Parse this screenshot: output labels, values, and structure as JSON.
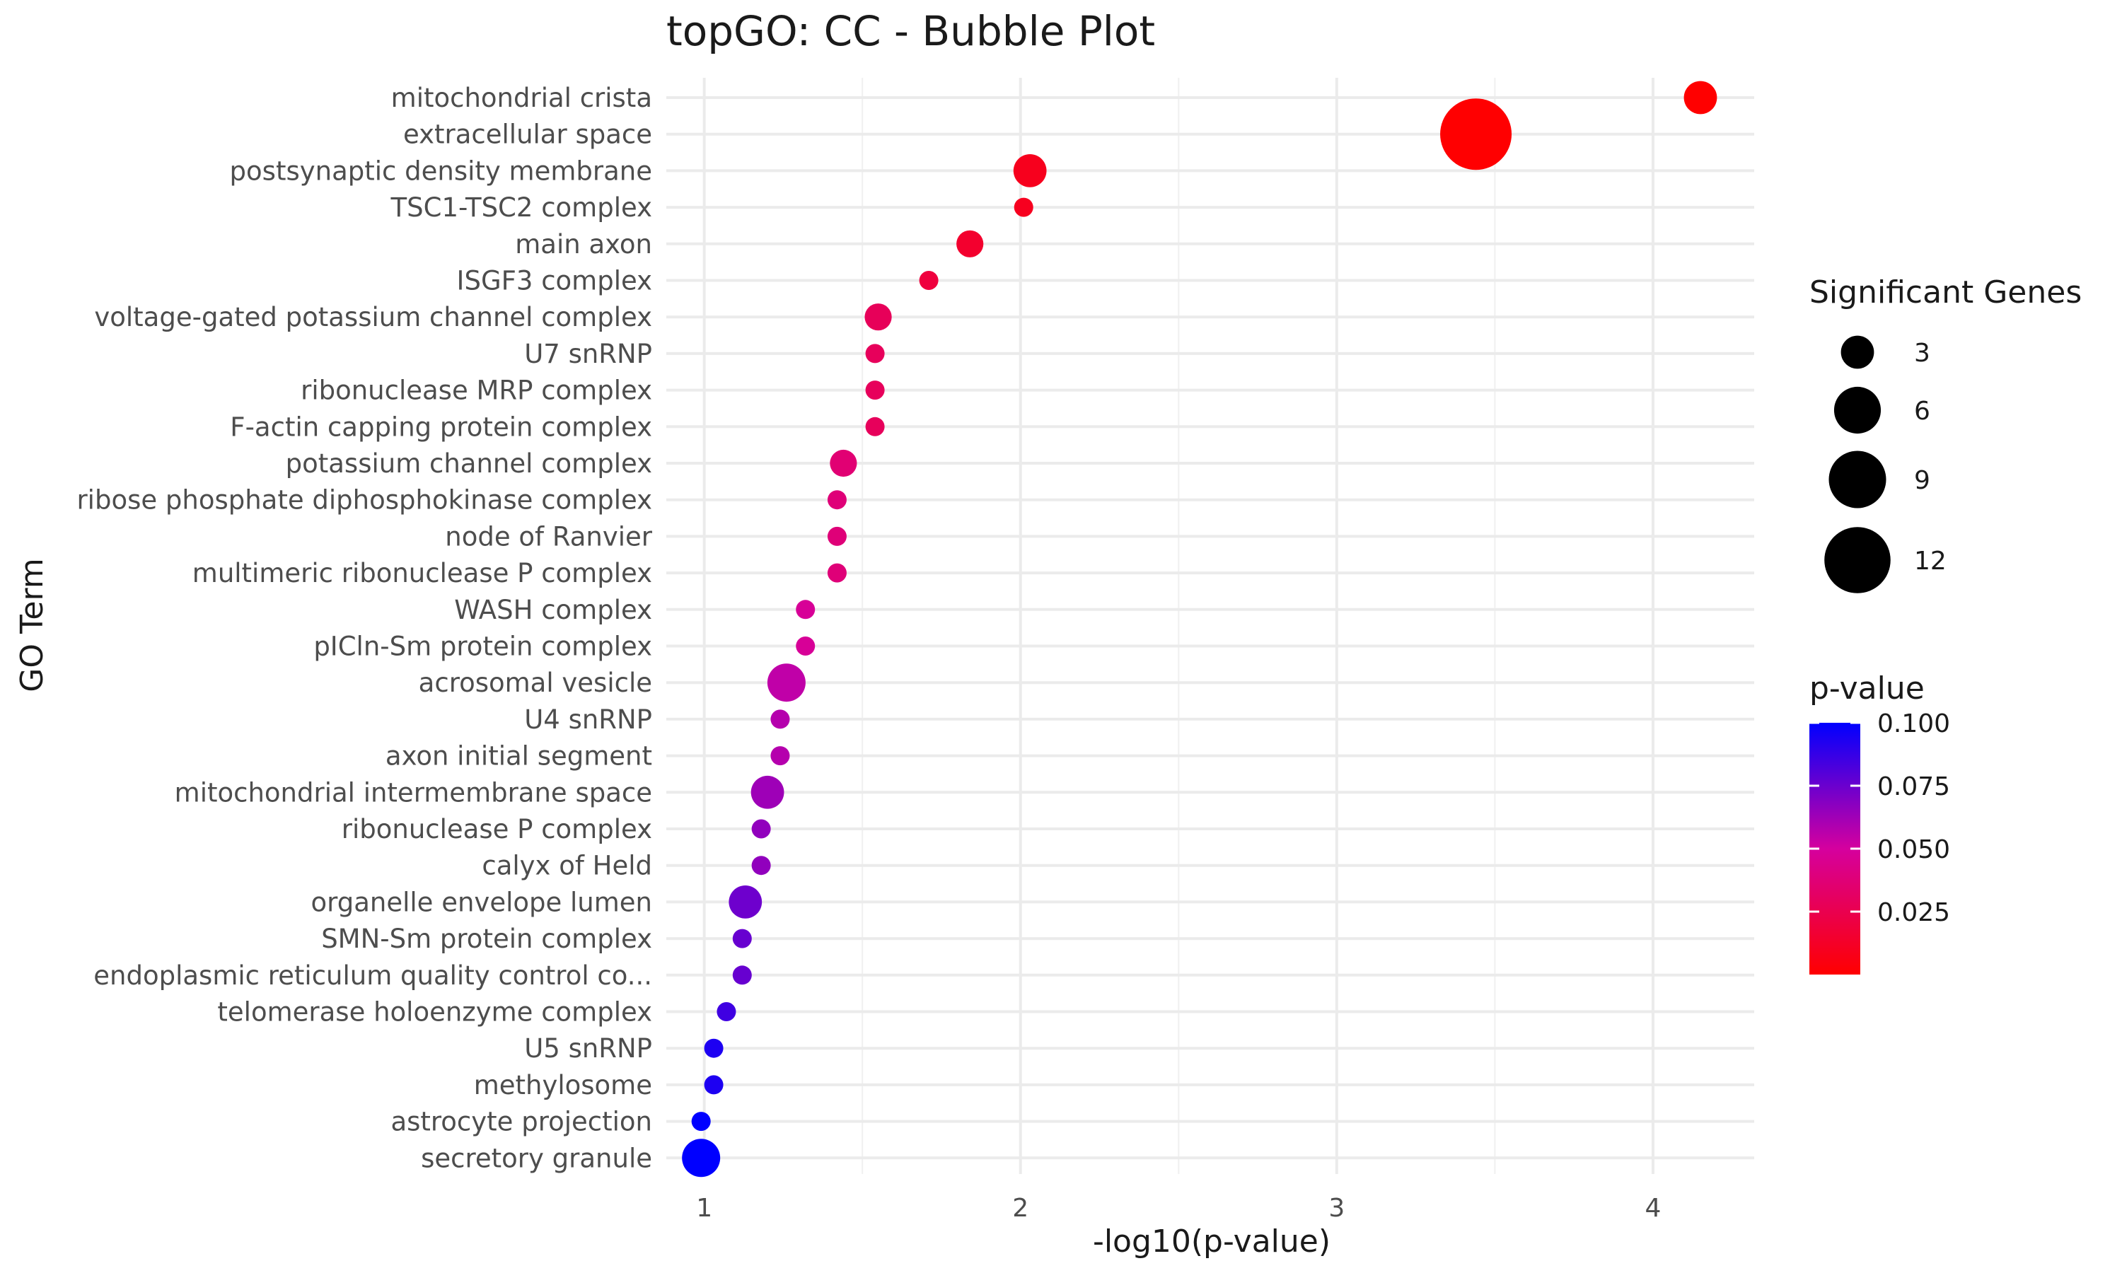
{
  "chart_data": {
    "type": "scatter",
    "title": "topGO: CC - Bubble Plot",
    "xlabel": "-log10(p-value)",
    "ylabel": "GO Term",
    "xlim": [
      0.88,
      4.32
    ],
    "x_ticks": [
      {
        "value": 1,
        "label": "1"
      },
      {
        "value": 2,
        "label": "2"
      },
      {
        "value": 3,
        "label": "3"
      },
      {
        "value": 4,
        "label": "4"
      }
    ],
    "grid": true,
    "points": [
      {
        "term": "mitochondrial crista",
        "x": 4.15,
        "genes": 3,
        "p": 7e-05
      },
      {
        "term": "extracellular space",
        "x": 3.44,
        "genes": 14,
        "p": 0.00036
      },
      {
        "term": "postsynaptic density membrane",
        "x": 2.03,
        "genes": 3,
        "p": 0.0093
      },
      {
        "term": "TSC1-TSC2 complex",
        "x": 2.01,
        "genes": 1,
        "p": 0.0098
      },
      {
        "term": "main axon",
        "x": 1.84,
        "genes": 2,
        "p": 0.0145
      },
      {
        "term": "ISGF3 complex",
        "x": 1.71,
        "genes": 1,
        "p": 0.0195
      },
      {
        "term": "voltage-gated potassium channel complex",
        "x": 1.55,
        "genes": 2,
        "p": 0.0282
      },
      {
        "term": "U7 snRNP",
        "x": 1.54,
        "genes": 1,
        "p": 0.0288
      },
      {
        "term": "ribonuclease MRP complex",
        "x": 1.54,
        "genes": 1,
        "p": 0.0288
      },
      {
        "term": "F-actin capping protein complex",
        "x": 1.54,
        "genes": 1,
        "p": 0.0288
      },
      {
        "term": "potassium channel complex",
        "x": 1.44,
        "genes": 2,
        "p": 0.0363
      },
      {
        "term": "ribose phosphate diphosphokinase complex",
        "x": 1.42,
        "genes": 1,
        "p": 0.038
      },
      {
        "term": "node of Ranvier",
        "x": 1.42,
        "genes": 1,
        "p": 0.038
      },
      {
        "term": "multimeric ribonuclease P complex",
        "x": 1.42,
        "genes": 1,
        "p": 0.038
      },
      {
        "term": "WASH complex",
        "x": 1.32,
        "genes": 1,
        "p": 0.0479
      },
      {
        "term": "pICln-Sm protein complex",
        "x": 1.32,
        "genes": 1,
        "p": 0.0479
      },
      {
        "term": "acrosomal vesicle",
        "x": 1.26,
        "genes": 4,
        "p": 0.055
      },
      {
        "term": "U4 snRNP",
        "x": 1.24,
        "genes": 1,
        "p": 0.0575
      },
      {
        "term": "axon initial segment",
        "x": 1.24,
        "genes": 1,
        "p": 0.0575
      },
      {
        "term": "mitochondrial intermembrane space",
        "x": 1.2,
        "genes": 3,
        "p": 0.063
      },
      {
        "term": "ribonuclease P complex",
        "x": 1.18,
        "genes": 1,
        "p": 0.066
      },
      {
        "term": "calyx of Held",
        "x": 1.18,
        "genes": 1,
        "p": 0.066
      },
      {
        "term": "organelle envelope lumen",
        "x": 1.13,
        "genes": 3,
        "p": 0.0741
      },
      {
        "term": "SMN-Sm protein complex",
        "x": 1.12,
        "genes": 1,
        "p": 0.0759
      },
      {
        "term": "endoplasmic reticulum quality control co...",
        "x": 1.12,
        "genes": 1,
        "p": 0.0759
      },
      {
        "term": "telomerase holoenzyme complex",
        "x": 1.07,
        "genes": 1,
        "p": 0.0851
      },
      {
        "term": "U5 snRNP",
        "x": 1.03,
        "genes": 1,
        "p": 0.0933
      },
      {
        "term": "methylosome",
        "x": 1.03,
        "genes": 1,
        "p": 0.0933
      },
      {
        "term": "astrocyte projection",
        "x": 0.99,
        "genes": 1,
        "p": 0.1023
      },
      {
        "term": "secretory granule",
        "x": 0.99,
        "genes": 4,
        "p": 0.1023
      }
    ],
    "legend_size": {
      "title": "Significant Genes",
      "entries": [
        {
          "label": "3",
          "value": 3
        },
        {
          "label": "6",
          "value": 6
        },
        {
          "label": "9",
          "value": 9
        },
        {
          "label": "12",
          "value": 12
        }
      ],
      "placement": "right"
    },
    "legend_color": {
      "title": "p-value",
      "low_color": "#ff0000",
      "high_color": "#0000ff",
      "range": [
        0.0,
        0.1
      ],
      "ticks": [
        {
          "value": 0.1,
          "label": "0.100"
        },
        {
          "value": 0.075,
          "label": "0.075"
        },
        {
          "value": 0.05,
          "label": "0.050"
        },
        {
          "value": 0.025,
          "label": "0.025"
        }
      ],
      "placement": "right"
    }
  }
}
